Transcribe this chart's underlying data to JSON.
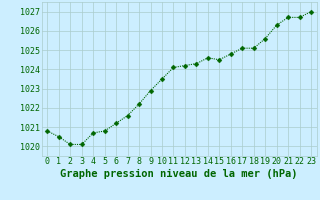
{
  "x": [
    0,
    1,
    2,
    3,
    4,
    5,
    6,
    7,
    8,
    9,
    10,
    11,
    12,
    13,
    14,
    15,
    16,
    17,
    18,
    19,
    20,
    21,
    22,
    23
  ],
  "y": [
    1020.8,
    1020.5,
    1020.1,
    1020.1,
    1020.7,
    1020.8,
    1021.2,
    1021.6,
    1022.2,
    1022.9,
    1023.5,
    1024.1,
    1024.2,
    1024.3,
    1024.6,
    1024.5,
    1024.8,
    1025.1,
    1025.1,
    1025.6,
    1026.3,
    1026.7,
    1026.7,
    1027.0
  ],
  "line_color": "#006600",
  "marker": "D",
  "marker_size": 2.5,
  "bg_color": "#cceeff",
  "grid_color": "#aacccc",
  "title": "Graphe pression niveau de la mer (hPa)",
  "title_color": "#006600",
  "title_fontsize": 7.5,
  "tick_color": "#006600",
  "tick_fontsize": 6,
  "ylim": [
    1019.5,
    1027.5
  ],
  "yticks": [
    1020,
    1021,
    1022,
    1023,
    1024,
    1025,
    1026,
    1027
  ],
  "xlim": [
    -0.5,
    23.5
  ],
  "xticks": [
    0,
    1,
    2,
    3,
    4,
    5,
    6,
    7,
    8,
    9,
    10,
    11,
    12,
    13,
    14,
    15,
    16,
    17,
    18,
    19,
    20,
    21,
    22,
    23
  ]
}
